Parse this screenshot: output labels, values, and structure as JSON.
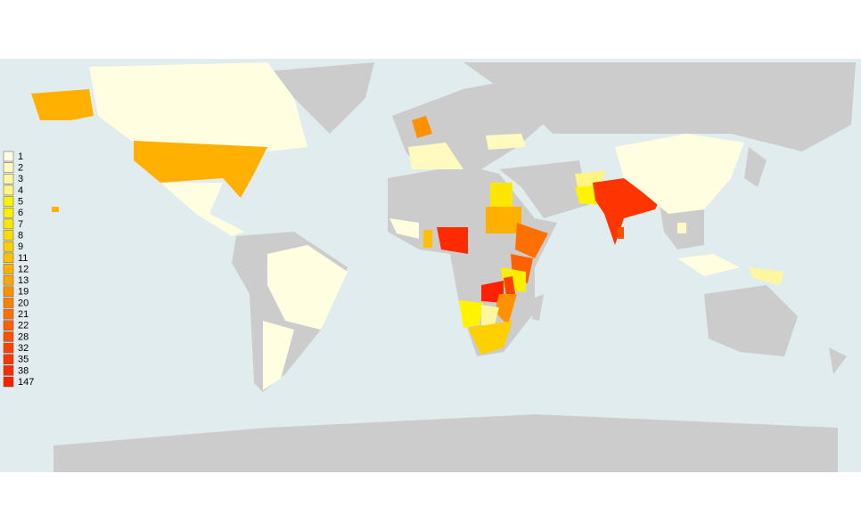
{
  "legend": [
    {
      "value": 1,
      "color": "#fffee0"
    },
    {
      "value": 2,
      "color": "#fffac0"
    },
    {
      "value": 3,
      "color": "#fff7a0"
    },
    {
      "value": 4,
      "color": "#fff580"
    },
    {
      "value": 5,
      "color": "#fff300"
    },
    {
      "value": 6,
      "color": "#ffee00"
    },
    {
      "value": 7,
      "color": "#ffe500"
    },
    {
      "value": 8,
      "color": "#ffdc00"
    },
    {
      "value": 9,
      "color": "#ffd000"
    },
    {
      "value": 11,
      "color": "#ffc000"
    },
    {
      "value": 12,
      "color": "#ffb000"
    },
    {
      "value": 13,
      "color": "#ffa500"
    },
    {
      "value": 19,
      "color": "#ff9000"
    },
    {
      "value": 20,
      "color": "#ff8000"
    },
    {
      "value": 21,
      "color": "#ff7000"
    },
    {
      "value": 22,
      "color": "#ff6000"
    },
    {
      "value": 28,
      "color": "#ff5000"
    },
    {
      "value": 32,
      "color": "#ff4000"
    },
    {
      "value": 35,
      "color": "#ff3500"
    },
    {
      "value": 38,
      "color": "#ff2a00"
    },
    {
      "value": 147,
      "color": "#ff2000"
    }
  ],
  "regions": [
    {
      "value": 1
    },
    {
      "value": 12
    },
    {
      "value": 12
    },
    {
      "value": 1
    },
    {
      "value": 1
    },
    {
      "value": 1
    },
    {
      "value": 19
    },
    {
      "value": 2
    },
    {
      "value": 2
    },
    {
      "value": 38
    },
    {
      "value": 11
    },
    {
      "value": 1
    },
    {
      "value": 7
    },
    {
      "value": 12
    },
    {
      "value": 21
    },
    {
      "value": 22
    },
    {
      "value": 6
    },
    {
      "value": 147
    },
    {
      "value": 32
    },
    {
      "value": 19
    },
    {
      "value": 5
    },
    {
      "value": 3
    },
    {
      "value": 9
    },
    {
      "value": 4
    },
    {
      "value": 5
    },
    {
      "value": 35
    },
    {
      "value": 28
    },
    {
      "value": 1
    },
    {
      "value": 2
    },
    {
      "value": 1
    },
    {
      "value": 3
    },
    {
      "value": 12
    }
  ]
}
